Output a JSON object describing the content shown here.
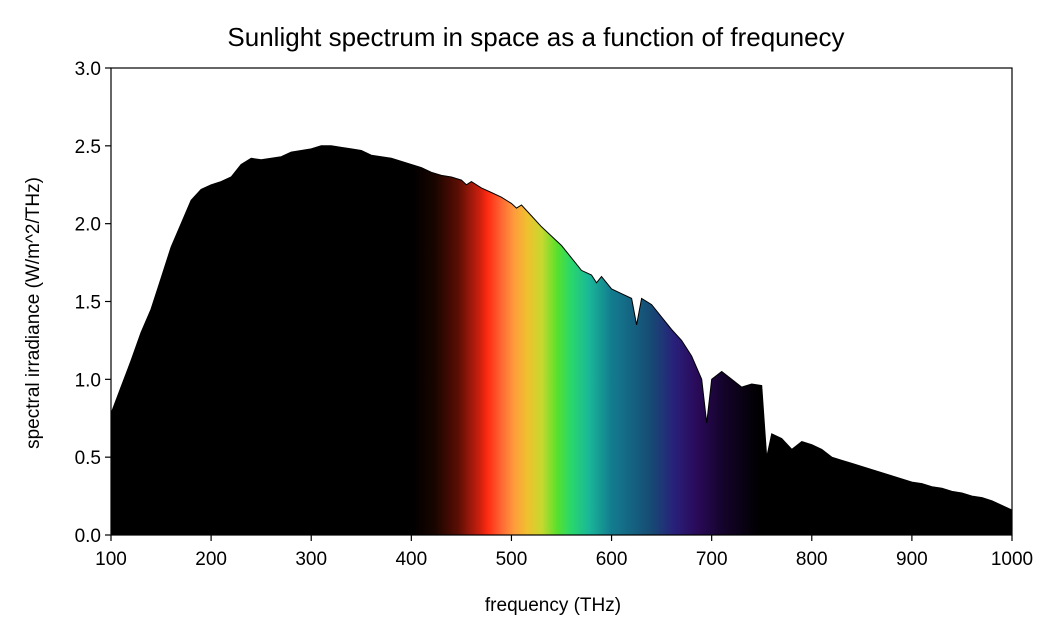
{
  "chart_data": {
    "type": "area",
    "title": "Sunlight spectrum in space as a function of frequnecy",
    "xlabel": "frequency (THz)",
    "ylabel": "spectral irradiance (W/m^2/THz)",
    "xlim": [
      100,
      1000
    ],
    "ylim": [
      0,
      3.0
    ],
    "xticks": [
      100,
      200,
      300,
      400,
      500,
      600,
      700,
      800,
      900,
      1000
    ],
    "yticks": [
      "0.0",
      "0.5",
      "1.0",
      "1.5",
      "2.0",
      "2.5",
      "3.0"
    ],
    "grid": false,
    "fill": "visible-spectrum gradient (400–790 THz), black elsewhere",
    "series": [
      {
        "name": "spectral irradiance",
        "x": [
          100,
          110,
          120,
          130,
          140,
          150,
          160,
          170,
          180,
          190,
          200,
          210,
          220,
          230,
          240,
          250,
          260,
          270,
          280,
          290,
          300,
          310,
          320,
          330,
          340,
          350,
          360,
          370,
          380,
          390,
          400,
          410,
          420,
          430,
          440,
          450,
          455,
          460,
          470,
          480,
          490,
          500,
          505,
          510,
          520,
          530,
          540,
          550,
          560,
          570,
          580,
          585,
          590,
          600,
          610,
          620,
          625,
          630,
          640,
          650,
          660,
          670,
          680,
          690,
          695,
          700,
          710,
          720,
          730,
          740,
          750,
          755,
          760,
          770,
          780,
          790,
          800,
          810,
          820,
          830,
          840,
          850,
          860,
          870,
          880,
          890,
          900,
          910,
          920,
          930,
          940,
          950,
          960,
          970,
          980,
          990,
          1000
        ],
        "y": [
          0.78,
          0.95,
          1.12,
          1.3,
          1.45,
          1.65,
          1.85,
          2.0,
          2.15,
          2.22,
          2.25,
          2.27,
          2.3,
          2.38,
          2.42,
          2.41,
          2.42,
          2.43,
          2.46,
          2.47,
          2.48,
          2.5,
          2.5,
          2.49,
          2.48,
          2.47,
          2.44,
          2.43,
          2.42,
          2.4,
          2.38,
          2.36,
          2.33,
          2.31,
          2.3,
          2.28,
          2.25,
          2.27,
          2.23,
          2.2,
          2.17,
          2.13,
          2.1,
          2.12,
          2.05,
          1.98,
          1.92,
          1.86,
          1.78,
          1.7,
          1.67,
          1.62,
          1.66,
          1.58,
          1.55,
          1.52,
          1.35,
          1.52,
          1.48,
          1.4,
          1.32,
          1.25,
          1.15,
          1.0,
          0.72,
          1.0,
          1.05,
          1.0,
          0.95,
          0.97,
          0.96,
          0.5,
          0.65,
          0.62,
          0.55,
          0.6,
          0.58,
          0.55,
          0.5,
          0.48,
          0.46,
          0.44,
          0.42,
          0.4,
          0.38,
          0.36,
          0.34,
          0.33,
          0.31,
          0.3,
          0.28,
          0.27,
          0.25,
          0.24,
          0.22,
          0.19,
          0.16
        ]
      }
    ]
  }
}
